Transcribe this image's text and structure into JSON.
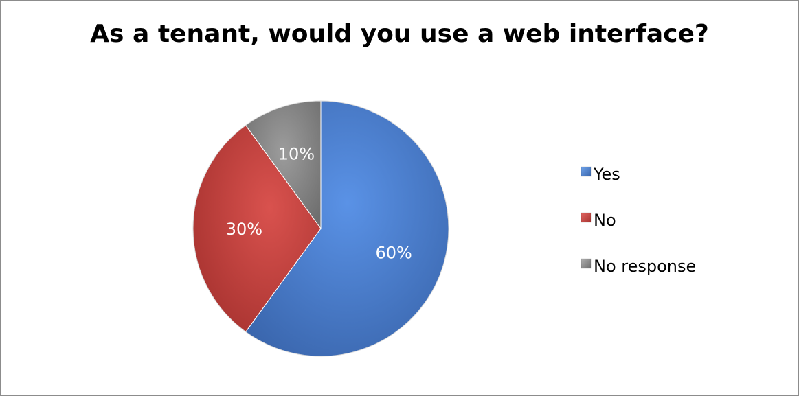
{
  "chart_data": {
    "type": "pie",
    "title": "As a tenant, would you use a web interface?",
    "slices": [
      {
        "label": "Yes",
        "value": 60,
        "display": "60%",
        "color": "#4a7fd0"
      },
      {
        "label": "No",
        "value": 30,
        "display": "30%",
        "color": "#c8403d"
      },
      {
        "label": "No response",
        "value": 10,
        "display": "10%",
        "color": "#8a8a8a"
      }
    ],
    "legend_position": "right"
  }
}
